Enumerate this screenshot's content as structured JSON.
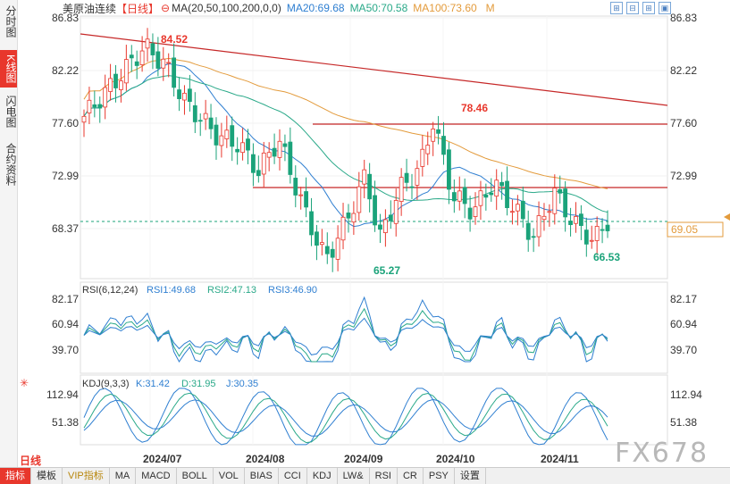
{
  "sidebar": {
    "tabs": [
      {
        "label": "分时图",
        "active": false
      },
      {
        "label": "K线图",
        "active": true
      },
      {
        "label": "闪电图",
        "active": false
      },
      {
        "label": "合约资料",
        "active": false
      }
    ]
  },
  "header": {
    "title": "美原油连续",
    "period": "【日线】",
    "ma_params": "MA(20,50,100,200,0,0)",
    "ma20": "MA20:69.68",
    "ma50": "MA50:70.58",
    "ma100": "MA100:73.60",
    "m_label": "M"
  },
  "top_icons": [
    "⊞",
    "⊟",
    "⊞",
    "▣"
  ],
  "price_axis": {
    "left": [
      "86.83",
      "82.22",
      "77.60",
      "72.99",
      "68.37"
    ],
    "right": [
      "86.83",
      "82.22",
      "77.60",
      "72.99",
      "69.05"
    ],
    "current_price": "69.05"
  },
  "annotations": {
    "high1": "84.52",
    "high2": "78.46",
    "low1": "65.27",
    "low2": "66.53"
  },
  "rsi_panel": {
    "title": "RSI(6,12,24)",
    "rsi1": "RSI1:49.68",
    "rsi2": "RSI2:47.13",
    "rsi3": "RSI3:46.90",
    "levels_left": [
      "82.17",
      "60.94",
      "39.70"
    ],
    "levels_right": [
      "82.17",
      "60.94",
      "39.70"
    ]
  },
  "kdj_panel": {
    "title": "KDJ(9,3,3)",
    "k": "K:31.42",
    "d": "D:31.95",
    "j": "J:30.35",
    "levels_left": [
      "112.94",
      "51.38"
    ],
    "levels_right": [
      "112.94",
      "51.38"
    ]
  },
  "x_axis": [
    "2024/07",
    "2024/08",
    "2024/09",
    "2024/10",
    "2024/11"
  ],
  "bottom_bar": {
    "daily_tag": "日线",
    "items": [
      "指标",
      "模板",
      "VIP指标",
      "MA",
      "MACD",
      "BOLL",
      "VOL",
      "BIAS",
      "CCI",
      "KDJ",
      "LW&",
      "RSI",
      "CR",
      "PSY",
      "设置"
    ]
  },
  "watermark": "FX678",
  "colors": {
    "up": "#e8372c",
    "down": "#1ba37a",
    "ma20": "#2f7fd1",
    "ma50": "#2aa989",
    "ma100": "#e39b3c",
    "ma200": "#7b7b7b",
    "accent": "#e8372c"
  },
  "chart_data": {
    "type": "line",
    "title": "美原油连续 日线",
    "series": [
      {
        "name": "MA20",
        "last": 69.68
      },
      {
        "name": "MA50",
        "last": 70.58
      },
      {
        "name": "MA100",
        "last": 73.6
      }
    ],
    "ylim": [
      64,
      87
    ],
    "annotated_points": [
      {
        "label": "84.52",
        "value": 84.52
      },
      {
        "label": "78.46",
        "value": 78.46
      },
      {
        "label": "65.27",
        "value": 65.27
      },
      {
        "label": "66.53",
        "value": 66.53
      }
    ]
  }
}
